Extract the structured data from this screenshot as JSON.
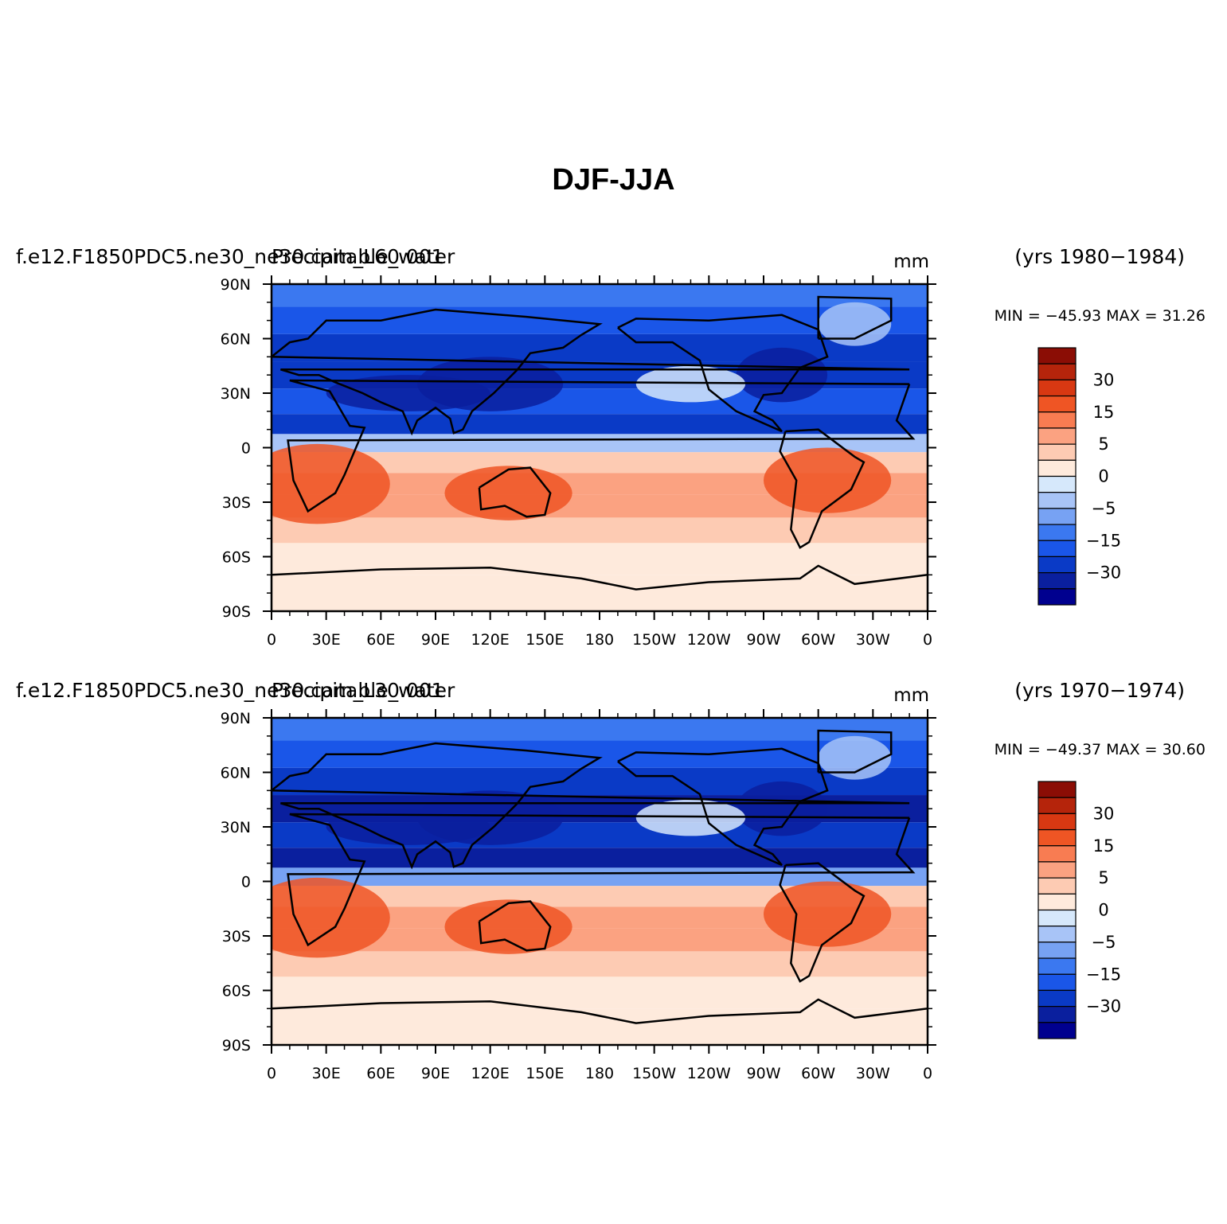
{
  "main_title": "DJF-JJA",
  "colors": {
    "scale": [
      "#00008f",
      "#0a1f9e",
      "#0a3ac6",
      "#1a56e8",
      "#3b78f0",
      "#77a2f3",
      "#a8c4f7",
      "#d6e8fb",
      "#feeadc",
      "#fdcbb3",
      "#fba281",
      "#f87c52",
      "#ef5524",
      "#d83812",
      "#b5240b",
      "#8b0d05"
    ],
    "coast": "#000000"
  },
  "chart_data": [
    {
      "type": "heatmap",
      "left_title": "f.e12.F1850PDC5.ne30_ne30.cam_L60.001",
      "center_title": "Precipitable_water",
      "units": "mm",
      "years": "(yrs 1980−1984)",
      "min_max": "MIN = −45.93  MAX =   31.26",
      "xticks": [
        "0",
        "30E",
        "60E",
        "90E",
        "120E",
        "150E",
        "180",
        "150W",
        "120W",
        "90W",
        "60W",
        "30W",
        "0"
      ],
      "yticks": [
        "90N",
        "60N",
        "30N",
        "0",
        "30S",
        "60S",
        "90S"
      ],
      "xlim": [
        0,
        360
      ],
      "ylim": [
        -90,
        90
      ],
      "colorbar_labels": [
        "30",
        "15",
        "5",
        "0",
        "−5",
        "−15",
        "−30"
      ],
      "bands": [
        {
          "lat": 85,
          "value": -20
        },
        {
          "lat": 70,
          "value": -25
        },
        {
          "lat": 55,
          "value": -28
        },
        {
          "lat": 40,
          "value": -30
        },
        {
          "lat": 25,
          "value": -25
        },
        {
          "lat": 12,
          "value": -30
        },
        {
          "lat": 3,
          "value": -10
        },
        {
          "lat": -8,
          "value": 5
        },
        {
          "lat": -20,
          "value": 12
        },
        {
          "lat": -32,
          "value": 10
        },
        {
          "lat": -45,
          "value": 6
        },
        {
          "lat": -60,
          "value": 3
        },
        {
          "lat": -80,
          "value": 1
        }
      ]
    },
    {
      "type": "heatmap",
      "left_title": "f.e12.F1850PDC5.ne30_ne30.cam_L30.001",
      "center_title": "Precipitable_water",
      "units": "mm",
      "years": "(yrs 1970−1974)",
      "min_max": "MIN = −49.37  MAX =   30.60",
      "xticks": [
        "0",
        "30E",
        "60E",
        "90E",
        "120E",
        "150E",
        "180",
        "150W",
        "120W",
        "90W",
        "60W",
        "30W",
        "0"
      ],
      "yticks": [
        "90N",
        "60N",
        "30N",
        "0",
        "30S",
        "60S",
        "90S"
      ],
      "xlim": [
        0,
        360
      ],
      "ylim": [
        -90,
        90
      ],
      "colorbar_labels": [
        "30",
        "15",
        "5",
        "0",
        "−5",
        "−15",
        "−30"
      ],
      "bands": [
        {
          "lat": 85,
          "value": -18
        },
        {
          "lat": 70,
          "value": -25
        },
        {
          "lat": 55,
          "value": -28
        },
        {
          "lat": 40,
          "value": -32
        },
        {
          "lat": 25,
          "value": -28
        },
        {
          "lat": 12,
          "value": -32
        },
        {
          "lat": 3,
          "value": -12
        },
        {
          "lat": -8,
          "value": 6
        },
        {
          "lat": -20,
          "value": 13
        },
        {
          "lat": -32,
          "value": 10
        },
        {
          "lat": -45,
          "value": 6
        },
        {
          "lat": -60,
          "value": 3
        },
        {
          "lat": -80,
          "value": 1
        }
      ]
    }
  ]
}
